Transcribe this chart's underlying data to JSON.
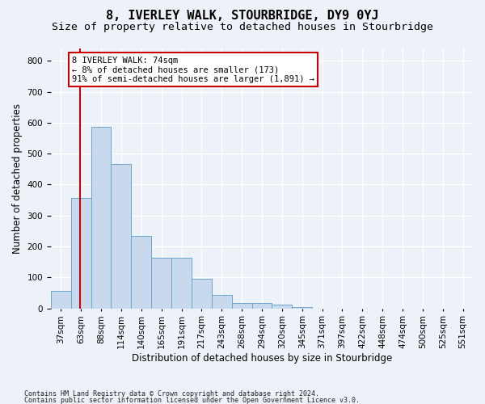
{
  "title": "8, IVERLEY WALK, STOURBRIDGE, DY9 0YJ",
  "subtitle": "Size of property relative to detached houses in Stourbridge",
  "xlabel": "Distribution of detached houses by size in Stourbridge",
  "ylabel": "Number of detached properties",
  "bar_color": "#c8d9ee",
  "bar_edge_color": "#6ea6cc",
  "vline_color": "#cc0000",
  "vline_x_index": 1,
  "categories": [
    "37sqm",
    "63sqm",
    "88sqm",
    "114sqm",
    "140sqm",
    "165sqm",
    "191sqm",
    "217sqm",
    "243sqm",
    "268sqm",
    "294sqm",
    "320sqm",
    "345sqm",
    "371sqm",
    "397sqm",
    "422sqm",
    "448sqm",
    "474sqm",
    "500sqm",
    "525sqm",
    "551sqm"
  ],
  "bar_heights": [
    57,
    356,
    588,
    466,
    234,
    163,
    163,
    95,
    44,
    18,
    18,
    12,
    5,
    0,
    0,
    0,
    0,
    0,
    0,
    0,
    0
  ],
  "ylim": [
    0,
    840
  ],
  "yticks": [
    0,
    100,
    200,
    300,
    400,
    500,
    600,
    700,
    800
  ],
  "annotation_text": "8 IVERLEY WALK: 74sqm\n← 8% of detached houses are smaller (173)\n91% of semi-detached houses are larger (1,891) →",
  "annotation_box_color": "#ffffff",
  "annotation_box_edge": "#cc0000",
  "footnote1": "Contains HM Land Registry data © Crown copyright and database right 2024.",
  "footnote2": "Contains public sector information licensed under the Open Government Licence v3.0.",
  "background_color": "#edf2f9",
  "grid_color": "#ffffff",
  "title_fontsize": 11,
  "subtitle_fontsize": 9.5,
  "label_fontsize": 8.5,
  "tick_fontsize": 7.5,
  "footnote_fontsize": 6
}
